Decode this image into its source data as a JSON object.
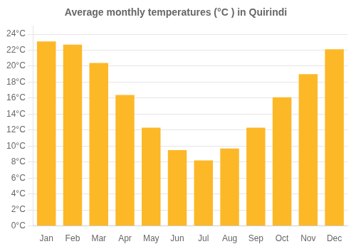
{
  "chart_data": {
    "type": "bar",
    "title": "Average monthly temperatures (°C ) in Quirindi",
    "categories": [
      "Jan",
      "Feb",
      "Mar",
      "Apr",
      "May",
      "Jun",
      "Jul",
      "Aug",
      "Sep",
      "Oct",
      "Nov",
      "Dec"
    ],
    "values": [
      23.1,
      22.7,
      20.4,
      16.4,
      12.3,
      9.5,
      8.2,
      9.7,
      12.3,
      16.1,
      19.0,
      22.1
    ],
    "color": "#FDB827",
    "ylim": [
      0,
      25
    ],
    "yticks": [
      {
        "value": 0,
        "label": "0°C"
      },
      {
        "value": 2,
        "label": "2°C"
      },
      {
        "value": 4,
        "label": "4°C"
      },
      {
        "value": 6,
        "label": "6°C"
      },
      {
        "value": 8,
        "label": "8°C"
      },
      {
        "value": 10,
        "label": "10°C"
      },
      {
        "value": 12,
        "label": "12°C"
      },
      {
        "value": 14,
        "label": "14°C"
      },
      {
        "value": 16,
        "label": "16°C"
      },
      {
        "value": 18,
        "label": "18°C"
      },
      {
        "value": 20,
        "label": "20°C"
      },
      {
        "value": 22,
        "label": "22°C"
      },
      {
        "value": 24,
        "label": "24°C"
      }
    ],
    "grid": true
  }
}
